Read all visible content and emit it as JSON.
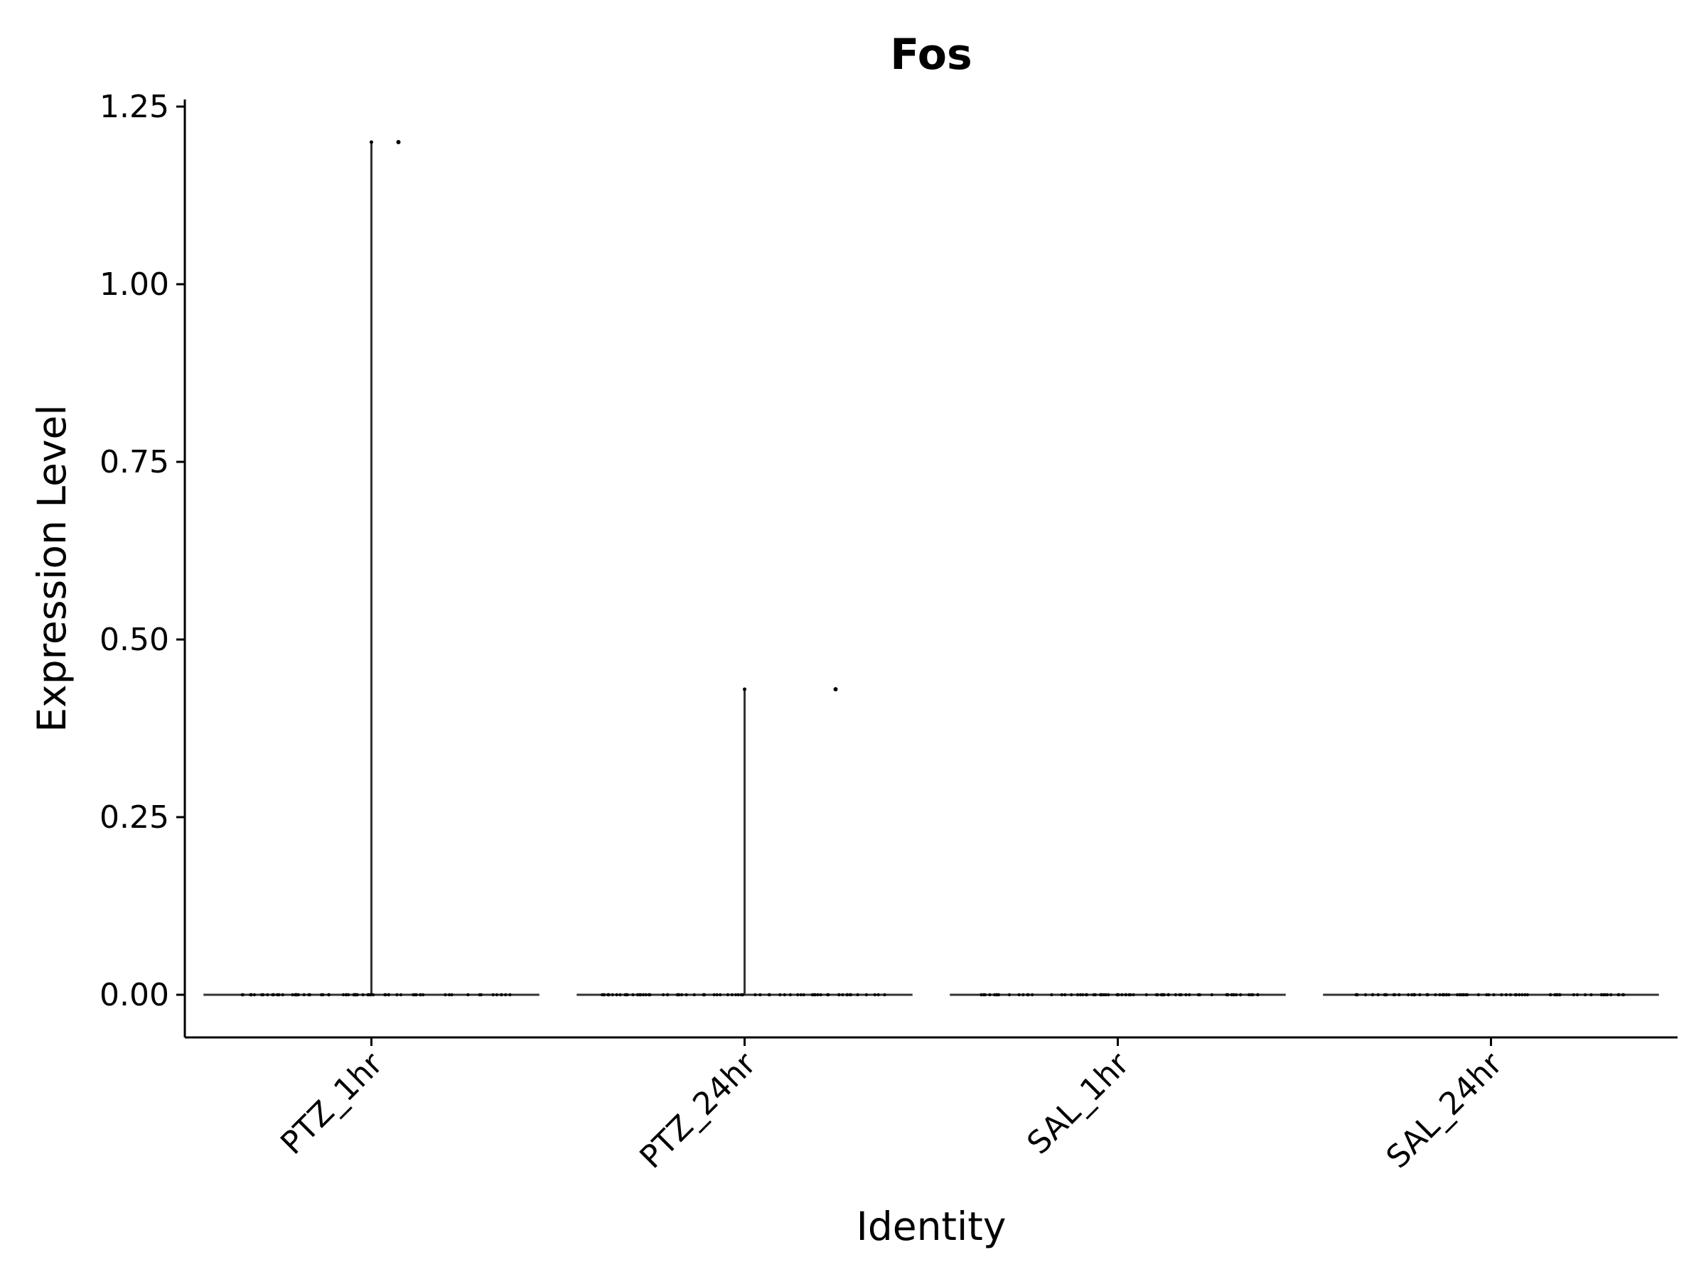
{
  "chart_data": {
    "type": "violin",
    "title": "Fos",
    "xlabel": "Identity",
    "ylabel": "Expression Level",
    "ylim": [
      -0.06,
      1.26
    ],
    "yticks": [
      "0.00",
      "0.25",
      "0.50",
      "0.75",
      "1.00",
      "1.25"
    ],
    "categories": [
      "PTZ_1hr",
      "PTZ_24hr",
      "SAL_1hr",
      "SAL_24hr"
    ],
    "groups": [
      {
        "name": "PTZ_1hr",
        "max": 1.2,
        "outliers": [
          1.2
        ]
      },
      {
        "name": "PTZ_24hr",
        "max": 0.43,
        "outliers": [
          0.43
        ]
      },
      {
        "name": "SAL_1hr",
        "max": 0,
        "outliers": []
      },
      {
        "name": "SAL_24hr",
        "max": 0,
        "outliers": []
      }
    ],
    "grid": false,
    "legend": "none",
    "colors": {
      "line": "#333333",
      "axis": "#000000",
      "point": "#000000"
    }
  }
}
